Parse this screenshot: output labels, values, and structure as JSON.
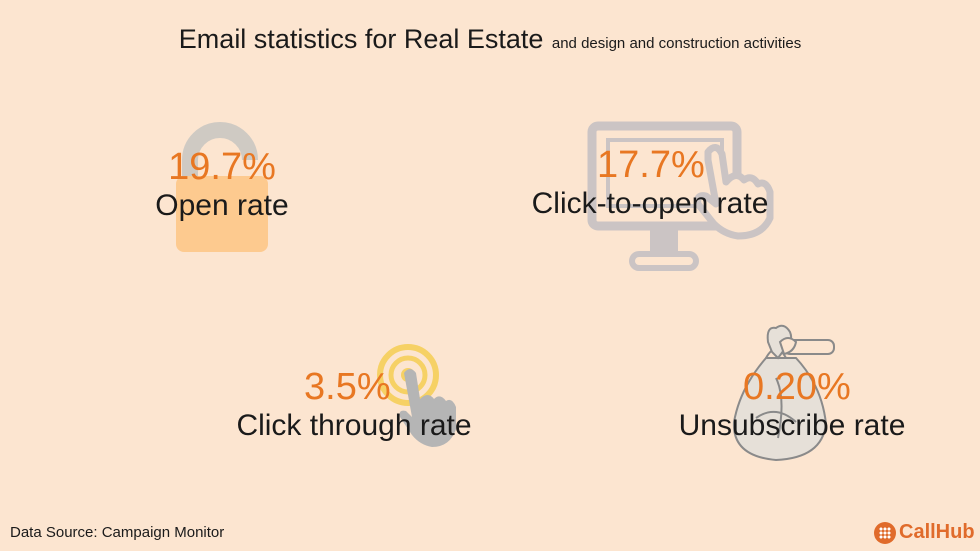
{
  "header": {
    "title": "Email statistics for Real Estate",
    "subtitle": "and design and construction activities"
  },
  "stats": [
    {
      "value": "19.7%",
      "label": "Open rate",
      "icon": "unlocked-padlock-icon"
    },
    {
      "value": "17.7%",
      "label": "Click-to-open rate",
      "icon": "monitor-pointer-icon"
    },
    {
      "value": "3.5%",
      "label": "Click through rate",
      "icon": "tap-target-icon"
    },
    {
      "value": "0.20%",
      "label": "Unsubscribe rate",
      "icon": "trash-bag-icon"
    }
  ],
  "footer": {
    "source": "Data Source: Campaign Monitor",
    "brand": "CallHub"
  },
  "colors": {
    "background": "#fce5d0",
    "accent": "#e87722",
    "text": "#1a1a1a",
    "brand": "#e06b2b"
  }
}
